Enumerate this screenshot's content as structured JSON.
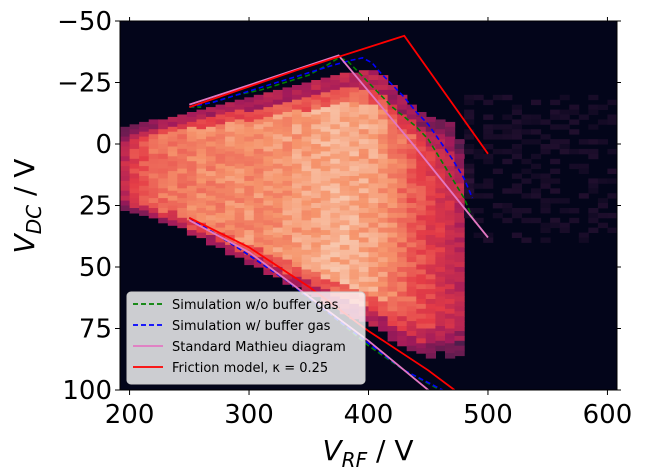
{
  "chart_data": {
    "type": "heatmap",
    "title": "",
    "xlabel": {
      "main": "V",
      "sub": "RF",
      "unit": " / V"
    },
    "ylabel": {
      "main": "V",
      "sub": "DC",
      "unit": " / V"
    },
    "xlim": [
      192,
      608
    ],
    "ylim": [
      100,
      -50
    ],
    "y_inverted": true,
    "xticks": [
      200,
      300,
      400,
      500,
      600
    ],
    "yticks": [
      -50,
      -25,
      0,
      25,
      50,
      75,
      100
    ],
    "xtick_labels": [
      "200",
      "300",
      "400",
      "500",
      "600"
    ],
    "ytick_labels": [
      "−50",
      "−25",
      "0",
      "25",
      "50",
      "75",
      "100"
    ],
    "heatmap": {
      "x_start": 192,
      "x_step": 8,
      "y_step": 2,
      "columns": [
        {
          "x": 192,
          "vdc_min": -7,
          "vdc_max": 27,
          "intensity": 0.5
        },
        {
          "x": 200,
          "vdc_min": -8,
          "vdc_max": 28,
          "intensity": 0.6
        },
        {
          "x": 208,
          "vdc_min": -9,
          "vdc_max": 29,
          "intensity": 0.65
        },
        {
          "x": 216,
          "vdc_min": -10,
          "vdc_max": 30,
          "intensity": 0.7
        },
        {
          "x": 224,
          "vdc_min": -10,
          "vdc_max": 31,
          "intensity": 0.72
        },
        {
          "x": 232,
          "vdc_min": -11,
          "vdc_max": 32,
          "intensity": 0.74
        },
        {
          "x": 240,
          "vdc_min": -12,
          "vdc_max": 34,
          "intensity": 0.75
        },
        {
          "x": 248,
          "vdc_min": -13,
          "vdc_max": 36,
          "intensity": 0.76
        },
        {
          "x": 256,
          "vdc_min": -14,
          "vdc_max": 38,
          "intensity": 0.76
        },
        {
          "x": 264,
          "vdc_min": -15,
          "vdc_max": 40,
          "intensity": 0.77
        },
        {
          "x": 272,
          "vdc_min": -16,
          "vdc_max": 42,
          "intensity": 0.77
        },
        {
          "x": 280,
          "vdc_min": -17,
          "vdc_max": 44,
          "intensity": 0.78
        },
        {
          "x": 288,
          "vdc_min": -18,
          "vdc_max": 46,
          "intensity": 0.78
        },
        {
          "x": 296,
          "vdc_min": -19,
          "vdc_max": 48,
          "intensity": 0.79
        },
        {
          "x": 304,
          "vdc_min": -20,
          "vdc_max": 50,
          "intensity": 0.79
        },
        {
          "x": 312,
          "vdc_min": -21,
          "vdc_max": 52,
          "intensity": 0.8
        },
        {
          "x": 320,
          "vdc_min": -22,
          "vdc_max": 54,
          "intensity": 0.8
        },
        {
          "x": 328,
          "vdc_min": -23,
          "vdc_max": 56,
          "intensity": 0.81
        },
        {
          "x": 336,
          "vdc_min": -24,
          "vdc_max": 58,
          "intensity": 0.82
        },
        {
          "x": 344,
          "vdc_min": -25,
          "vdc_max": 60,
          "intensity": 0.83
        },
        {
          "x": 352,
          "vdc_min": -26,
          "vdc_max": 62,
          "intensity": 0.84
        },
        {
          "x": 360,
          "vdc_min": -27,
          "vdc_max": 64,
          "intensity": 0.85
        },
        {
          "x": 368,
          "vdc_min": -28,
          "vdc_max": 66,
          "intensity": 0.86
        },
        {
          "x": 376,
          "vdc_min": -29,
          "vdc_max": 68,
          "intensity": 0.86
        },
        {
          "x": 384,
          "vdc_min": -29,
          "vdc_max": 70,
          "intensity": 0.85
        },
        {
          "x": 392,
          "vdc_min": -30,
          "vdc_max": 72,
          "intensity": 0.84
        },
        {
          "x": 400,
          "vdc_min": -30,
          "vdc_max": 74,
          "intensity": 0.83
        },
        {
          "x": 408,
          "vdc_min": -28,
          "vdc_max": 76,
          "intensity": 0.8
        },
        {
          "x": 416,
          "vdc_min": -24,
          "vdc_max": 79,
          "intensity": 0.76
        },
        {
          "x": 424,
          "vdc_min": -20,
          "vdc_max": 81,
          "intensity": 0.72
        },
        {
          "x": 432,
          "vdc_min": -16,
          "vdc_max": 83,
          "intensity": 0.68
        },
        {
          "x": 440,
          "vdc_min": -13,
          "vdc_max": 85,
          "intensity": 0.64
        },
        {
          "x": 448,
          "vdc_min": -11,
          "vdc_max": 86,
          "intensity": 0.6
        },
        {
          "x": 456,
          "vdc_min": -10,
          "vdc_max": 84,
          "intensity": 0.56
        },
        {
          "x": 464,
          "vdc_min": -9,
          "vdc_max": 86,
          "intensity": 0.52
        },
        {
          "x": 472,
          "vdc_min": -2,
          "vdc_max": 85,
          "intensity": 0.48
        },
        {
          "x": 480,
          "vdc_min": 6,
          "vdc_max": 22,
          "intensity": 0.1
        }
      ]
    },
    "series": [
      {
        "name": "Simulation w/o buffer gas",
        "color": "#008000",
        "style": "dashed",
        "segments": [
          [
            [
              250,
              -15
            ],
            [
              270,
              -17
            ],
            [
              290,
              -20
            ],
            [
              310,
              -22
            ],
            [
              330,
              -25
            ],
            [
              350,
              -28
            ],
            [
              365,
              -32
            ],
            [
              375,
              -35
            ],
            [
              382,
              -34
            ],
            [
              390,
              -30
            ],
            [
              400,
              -25
            ],
            [
              410,
              -20
            ],
            [
              420,
              -15
            ],
            [
              430,
              -11
            ],
            [
              440,
              -7
            ],
            [
              450,
              -2
            ],
            [
              460,
              6
            ],
            [
              470,
              14
            ],
            [
              480,
              22
            ],
            [
              487,
              30
            ]
          ],
          [
            [
              250,
              -15
            ],
            [
              260,
              -15
            ]
          ],
          [
            [
              250,
              30
            ],
            [
              290,
              42
            ],
            [
              330,
              55
            ],
            [
              370,
              70
            ],
            [
              400,
              82
            ],
            [
              430,
              92
            ],
            [
              460,
              100
            ]
          ]
        ]
      },
      {
        "name": "Simulation w/ buffer gas",
        "color": "#0000ff",
        "style": "dashed",
        "segments": [
          [
            [
              250,
              -15
            ],
            [
              270,
              -17
            ],
            [
              290,
              -20
            ],
            [
              310,
              -23
            ],
            [
              330,
              -26
            ],
            [
              350,
              -29
            ],
            [
              370,
              -32
            ],
            [
              385,
              -34
            ],
            [
              395,
              -35
            ],
            [
              403,
              -33
            ],
            [
              410,
              -29
            ],
            [
              420,
              -24
            ],
            [
              430,
              -19
            ],
            [
              440,
              -13
            ],
            [
              450,
              -8
            ],
            [
              460,
              -1
            ],
            [
              470,
              6
            ],
            [
              480,
              14
            ],
            [
              487,
              22
            ]
          ],
          [
            [
              250,
              30
            ],
            [
              290,
              42
            ],
            [
              330,
              55
            ],
            [
              370,
              70
            ],
            [
              400,
              81
            ],
            [
              430,
              92
            ],
            [
              462,
              100
            ]
          ]
        ]
      },
      {
        "name": "Standard Mathieu diagram",
        "color": "#e377c2",
        "style": "solid",
        "segments": [
          [
            [
              250,
              -16
            ],
            [
              313,
              -26
            ],
            [
              375,
              -36
            ],
            [
              437,
              0
            ],
            [
              500,
              38
            ]
          ],
          [
            [
              250,
              31
            ],
            [
              300,
              44
            ],
            [
              350,
              62
            ],
            [
              400,
              80
            ],
            [
              450,
              100
            ],
            [
              455,
              101
            ]
          ]
        ]
      },
      {
        "name": "Friction model, κ = 0.25",
        "color": "#ff0000",
        "style": "solid",
        "segments": [
          [
            [
              250,
              -15
            ],
            [
              340,
              -30
            ],
            [
              430,
              -44
            ],
            [
              500,
              4
            ]
          ],
          [
            [
              250,
              30
            ],
            [
              300,
              42
            ],
            [
              350,
              58
            ],
            [
              400,
              76
            ],
            [
              450,
              92
            ],
            [
              472,
              100
            ]
          ]
        ]
      }
    ],
    "legend": {
      "position": "lower-left",
      "entries": [
        {
          "label": "Simulation w/o buffer gas",
          "color": "#008000",
          "style": "dashed"
        },
        {
          "label": "Simulation w/ buffer gas",
          "color": "#0000ff",
          "style": "dashed"
        },
        {
          "label": "Standard Mathieu diagram",
          "color": "#e377c2",
          "style": "solid"
        },
        {
          "label": "Friction model, κ = 0.25",
          "color": "#ff0000",
          "style": "solid"
        }
      ]
    },
    "colors": {
      "background": "#03051a",
      "colormap": "rocket"
    },
    "grid": false
  }
}
